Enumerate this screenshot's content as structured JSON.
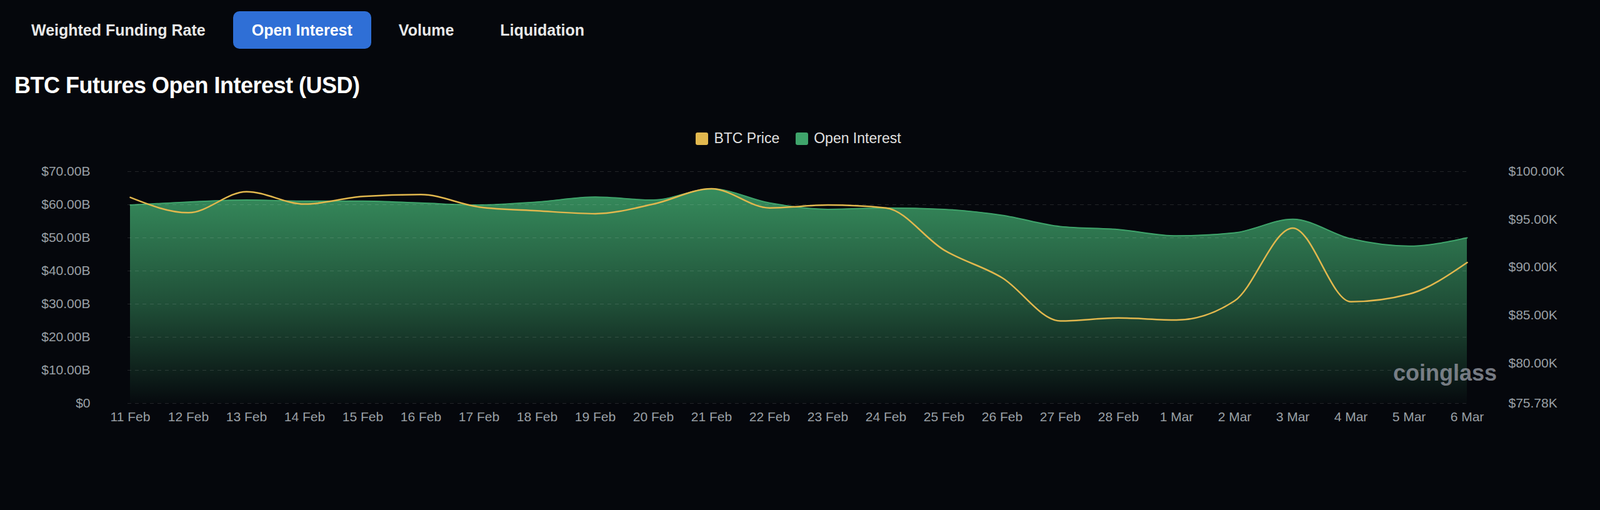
{
  "chart_data": {
    "type": "area",
    "tabs": [
      "Weighted Funding Rate",
      "Open Interest",
      "Volume",
      "Liquidation"
    ],
    "active_tab": "Open Interest",
    "title": "BTC Futures Open Interest (USD)",
    "watermark": "coinglass",
    "legend": "top",
    "grid": true,
    "categories": [
      "11 Feb",
      "12 Feb",
      "13 Feb",
      "14 Feb",
      "15 Feb",
      "16 Feb",
      "17 Feb",
      "18 Feb",
      "19 Feb",
      "20 Feb",
      "21 Feb",
      "22 Feb",
      "23 Feb",
      "24 Feb",
      "25 Feb",
      "26 Feb",
      "27 Feb",
      "28 Feb",
      "1 Mar",
      "2 Mar",
      "3 Mar",
      "4 Mar",
      "5 Mar",
      "6 Mar"
    ],
    "series": [
      {
        "name": "BTC Price",
        "type": "line",
        "axis": "y2",
        "color": "#e2b84e",
        "values": [
          97.3,
          95.7,
          97.9,
          96.6,
          97.4,
          97.6,
          96.3,
          95.9,
          95.6,
          96.6,
          98.2,
          96.2,
          96.5,
          96.2,
          91.8,
          88.9,
          84.4,
          84.7,
          84.5,
          86.5,
          94.1,
          86.4,
          87.2,
          90.5
        ]
      },
      {
        "name": "Open Interest",
        "type": "area",
        "color": "#3fa46b",
        "values": [
          59.9,
          60.8,
          61.4,
          61.1,
          61.1,
          60.5,
          59.9,
          60.8,
          62.3,
          61.4,
          64.8,
          60.5,
          58.6,
          59.0,
          58.6,
          56.8,
          53.4,
          52.5,
          50.6,
          51.5,
          55.6,
          49.7,
          47.5,
          50.0
        ]
      }
    ],
    "ylim": [
      0,
      70
    ],
    "yticks": [
      {
        "value": 0,
        "label": "$0"
      },
      {
        "value": 10,
        "label": "$10.00B"
      },
      {
        "value": 20,
        "label": "$20.00B"
      },
      {
        "value": 30,
        "label": "$30.00B"
      },
      {
        "value": 40,
        "label": "$40.00B"
      },
      {
        "value": 50,
        "label": "$50.00B"
      },
      {
        "value": 60,
        "label": "$60.00B"
      },
      {
        "value": 70,
        "label": "$70.00B"
      }
    ],
    "y2lim": [
      75.78,
      100
    ],
    "y2ticks": [
      {
        "value": 75.78,
        "label": "$75.78K"
      },
      {
        "value": 80,
        "label": "$80.00K"
      },
      {
        "value": 85,
        "label": "$85.00K"
      },
      {
        "value": 90,
        "label": "$90.00K"
      },
      {
        "value": 95,
        "label": "$95.00K"
      },
      {
        "value": 100,
        "label": "$100.00K"
      }
    ]
  }
}
